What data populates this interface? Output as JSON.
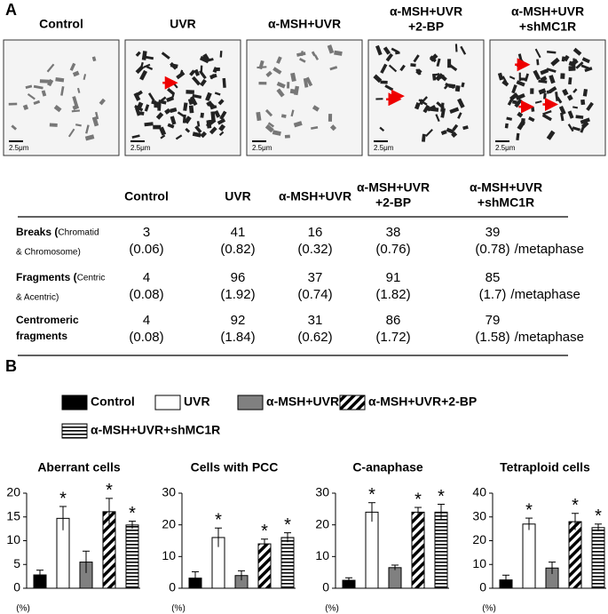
{
  "panels": [
    "A",
    "B"
  ],
  "images": [
    {
      "title": [
        "Control"
      ],
      "scale": "2.5μm",
      "arrows": 0
    },
    {
      "title": [
        "UVR"
      ],
      "scale": "2.5μm",
      "arrows": 1
    },
    {
      "title": [
        "α-MSH+UVR"
      ],
      "scale": "2.5μm",
      "arrows": 0
    },
    {
      "title": [
        "α-MSH+UVR",
        "+2-BP"
      ],
      "scale": "2.5μm",
      "arrows": 2
    },
    {
      "title": [
        "α-MSH+UVR",
        "+shMC1R"
      ],
      "scale": "2.5μm",
      "arrows": 3
    }
  ],
  "table": {
    "header": [
      [
        "Control"
      ],
      [
        "UVR"
      ],
      [
        "α-MSH+UVR"
      ],
      [
        "α-MSH+UVR",
        "+2-BP"
      ],
      [
        "α-MSH+UVR",
        "+shMC1R"
      ]
    ],
    "rows": [
      {
        "label": [
          "Breaks ("
        ],
        "note": [
          "Chromatid",
          "& Chromosome)"
        ],
        "counts": [
          3,
          41,
          16,
          38,
          39
        ],
        "rates": [
          "(0.06)",
          "(0.82)",
          "(0.32)",
          "(0.76)",
          "(0.78)"
        ],
        "unit": "/metaphase"
      },
      {
        "label": [
          "Fragments ("
        ],
        "note": [
          "Centric",
          "& Acentric)"
        ],
        "counts": [
          4,
          96,
          37,
          91,
          85
        ],
        "rates": [
          "(0.08)",
          "(1.92)",
          "(0.74)",
          "(1.82)",
          "(1.7)"
        ],
        "unit": "/metaphase"
      },
      {
        "label": [
          "Centromeric",
          "fragments"
        ],
        "counts": [
          4,
          92,
          31,
          86,
          79
        ],
        "rates": [
          "(0.08)",
          "(1.84)",
          "(0.62)",
          "(1.72)",
          "(1.58)"
        ],
        "unit": "/metaphase"
      }
    ]
  },
  "legend": [
    {
      "name": "Control",
      "fill": "#000000",
      "pattern": null
    },
    {
      "name": "UVR",
      "fill": "#ffffff",
      "pattern": null
    },
    {
      "name": "α-MSH+UVR",
      "fill": "#808080",
      "pattern": null
    },
    {
      "name": "α-MSH+UVR+2-BP",
      "fill": "#ffffff",
      "pattern": "diagonal"
    },
    {
      "name": "α-MSH+UVR+shMC1R",
      "fill": "#ffffff",
      "pattern": "horizontal"
    }
  ],
  "chart_data": [
    {
      "type": "bar",
      "title": "Aberrant cells",
      "ylabel": "(%)",
      "values": [
        2.8,
        14.7,
        5.5,
        16.1,
        13.3
      ],
      "errors": [
        1,
        2.5,
        2.3,
        2.8,
        0.8
      ],
      "markers": [
        null,
        "*",
        null,
        "*",
        "*"
      ],
      "ylim": [
        0,
        20
      ],
      "yticks": [
        0,
        5,
        10,
        15,
        20
      ]
    },
    {
      "type": "bar",
      "title": "Cells with PCC",
      "ylabel": "(%)",
      "values": [
        3.2,
        16,
        4,
        14,
        16
      ],
      "errors": [
        2,
        3,
        1.5,
        1.5,
        1.5
      ],
      "markers": [
        null,
        "*",
        null,
        "*",
        "*"
      ],
      "ylim": [
        0,
        30
      ],
      "yticks": [
        0,
        10,
        20,
        30
      ]
    },
    {
      "type": "bar",
      "title": "C-anaphase",
      "ylabel": "(%)",
      "values": [
        2.5,
        24,
        6.5,
        24,
        24
      ],
      "errors": [
        0.8,
        3,
        0.8,
        1.5,
        2.5
      ],
      "markers": [
        null,
        "*",
        null,
        "*",
        "*"
      ],
      "ylim": [
        0,
        30
      ],
      "yticks": [
        0,
        10,
        20,
        30
      ]
    },
    {
      "type": "bar",
      "title": "Tetraploid cells",
      "ylabel": "(%)",
      "values": [
        3.5,
        27,
        8.5,
        28,
        25.5
      ],
      "errors": [
        2,
        2.5,
        2.5,
        3.5,
        1.5
      ],
      "markers": [
        null,
        "*",
        null,
        "*",
        "*"
      ],
      "ylim": [
        0,
        40
      ],
      "yticks": [
        0,
        10,
        20,
        30,
        40
      ]
    }
  ]
}
